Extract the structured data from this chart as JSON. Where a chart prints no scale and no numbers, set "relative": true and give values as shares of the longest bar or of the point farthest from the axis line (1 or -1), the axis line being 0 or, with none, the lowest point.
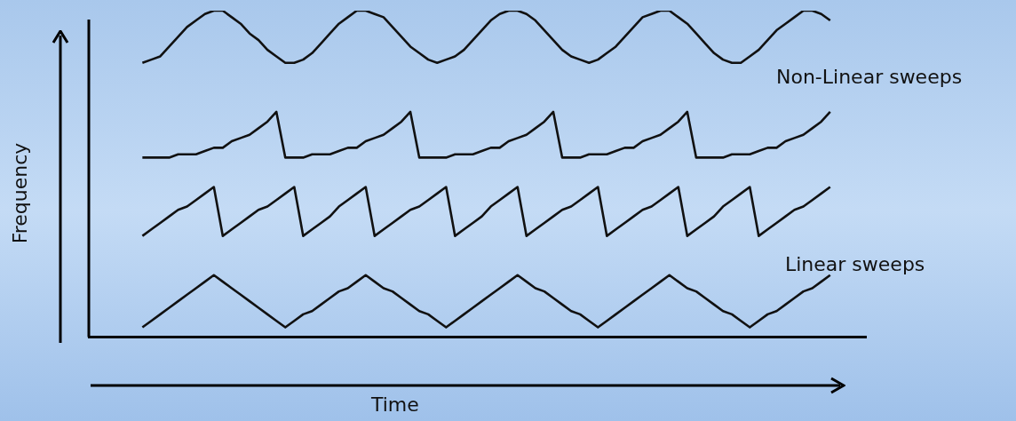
{
  "chart_data": {
    "type": "line",
    "relative": true,
    "xlabel": "Time",
    "ylabel": "Frequency",
    "legend": false,
    "grid": false,
    "marker": "none",
    "line_style": "solid",
    "annotations": [
      "Non-Linear sweeps",
      "Linear sweeps"
    ],
    "categories": [
      null,
      null,
      null,
      null,
      null,
      null,
      null,
      null,
      null,
      null,
      null,
      null,
      null,
      null,
      null,
      null,
      null,
      null,
      null,
      null,
      null,
      null,
      null,
      null,
      null,
      null,
      null,
      null,
      null,
      null,
      null,
      null,
      null,
      null,
      null,
      null,
      null,
      null,
      null,
      null,
      null,
      null,
      null,
      null,
      null,
      null,
      null,
      null,
      null,
      null,
      null,
      null,
      null,
      null,
      null,
      null,
      null,
      null,
      null,
      null,
      null,
      null,
      null,
      null,
      null,
      null,
      null,
      null,
      null,
      null,
      null,
      null,
      null,
      null,
      null,
      null,
      null,
      null,
      null,
      null,
      null,
      null,
      null,
      null,
      null,
      null,
      null,
      null
    ],
    "series": [
      {
        "color": "#111111",
        "values": [
          null,
          null,
          null,
          null,
          null,
          null,
          0.84,
          0.85,
          0.86,
          0.89,
          0.92,
          0.95,
          0.97,
          0.99,
          1,
          1,
          0.98,
          0.96,
          0.93,
          0.91,
          0.88,
          0.86,
          0.84,
          0.84,
          0.85,
          0.87,
          0.9,
          0.93,
          0.96,
          0.98,
          1,
          1,
          0.99,
          0.98,
          0.95,
          0.92,
          0.89,
          0.87,
          0.85,
          0.84,
          0.85,
          0.86,
          0.88,
          0.91,
          0.94,
          0.97,
          0.99,
          1,
          1,
          0.99,
          0.97,
          0.94,
          0.91,
          0.88,
          0.86,
          0.85,
          0.84,
          0.85,
          0.87,
          0.89,
          0.92,
          0.95,
          0.98,
          0.99,
          1,
          1,
          0.98,
          0.96,
          0.93,
          0.9,
          0.87,
          0.85,
          0.84,
          0.84,
          0.86,
          0.88,
          0.91,
          0.94,
          0.96,
          0.98,
          1,
          1,
          0.99,
          0.97,
          null,
          null,
          null,
          null
        ]
      },
      {
        "color": "#111111",
        "values": [
          null,
          null,
          null,
          null,
          null,
          null,
          0.55,
          0.55,
          0.55,
          0.55,
          0.56,
          0.56,
          0.56,
          0.57,
          0.58,
          0.58,
          0.6,
          0.61,
          0.62,
          0.64,
          0.66,
          0.69,
          0.55,
          0.55,
          0.55,
          0.56,
          0.56,
          0.56,
          0.57,
          0.58,
          0.58,
          0.6,
          0.61,
          0.62,
          0.64,
          0.66,
          0.69,
          0.55,
          0.55,
          0.55,
          0.55,
          0.56,
          0.56,
          0.56,
          0.57,
          0.58,
          0.58,
          0.6,
          0.61,
          0.62,
          0.64,
          0.66,
          0.69,
          0.55,
          0.55,
          0.55,
          0.56,
          0.56,
          0.56,
          0.57,
          0.58,
          0.58,
          0.6,
          0.61,
          0.62,
          0.64,
          0.66,
          0.69,
          0.55,
          0.55,
          0.55,
          0.55,
          0.56,
          0.56,
          0.56,
          0.57,
          0.58,
          0.58,
          0.6,
          0.61,
          0.62,
          0.64,
          0.66,
          0.69,
          null,
          null,
          null,
          null
        ]
      },
      {
        "color": "#111111",
        "values": [
          null,
          null,
          null,
          null,
          null,
          null,
          0.31,
          0.33,
          0.35,
          0.37,
          0.39,
          0.4,
          0.42,
          0.44,
          0.46,
          0.31,
          0.33,
          0.35,
          0.37,
          0.39,
          0.4,
          0.42,
          0.44,
          0.46,
          0.31,
          0.33,
          0.35,
          0.37,
          0.4,
          0.42,
          0.44,
          0.46,
          0.31,
          0.33,
          0.35,
          0.37,
          0.39,
          0.4,
          0.42,
          0.44,
          0.46,
          0.31,
          0.33,
          0.35,
          0.37,
          0.4,
          0.42,
          0.44,
          0.46,
          0.31,
          0.33,
          0.35,
          0.37,
          0.39,
          0.4,
          0.42,
          0.44,
          0.46,
          0.31,
          0.33,
          0.35,
          0.37,
          0.39,
          0.4,
          0.42,
          0.44,
          0.46,
          0.31,
          0.33,
          0.35,
          0.37,
          0.4,
          0.42,
          0.44,
          0.46,
          0.31,
          0.33,
          0.35,
          0.37,
          0.39,
          0.4,
          0.42,
          0.44,
          0.46,
          null,
          null,
          null,
          null
        ]
      },
      {
        "color": "#111111",
        "values": [
          null,
          null,
          null,
          null,
          null,
          null,
          0.03,
          0.05,
          0.07,
          0.09,
          0.11,
          0.13,
          0.15,
          0.17,
          0.19,
          0.17,
          0.15,
          0.13,
          0.11,
          0.09,
          0.07,
          0.05,
          0.03,
          0.05,
          0.07,
          0.08,
          0.1,
          0.12,
          0.14,
          0.15,
          0.17,
          0.19,
          0.17,
          0.15,
          0.14,
          0.12,
          0.1,
          0.08,
          0.07,
          0.05,
          0.03,
          0.05,
          0.07,
          0.09,
          0.11,
          0.13,
          0.15,
          0.17,
          0.19,
          0.17,
          0.15,
          0.14,
          0.12,
          0.1,
          0.08,
          0.07,
          0.05,
          0.03,
          0.05,
          0.07,
          0.09,
          0.11,
          0.13,
          0.15,
          0.17,
          0.19,
          0.17,
          0.15,
          0.14,
          0.12,
          0.1,
          0.08,
          0.07,
          0.05,
          0.03,
          0.05,
          0.07,
          0.08,
          0.1,
          0.12,
          0.14,
          0.15,
          0.17,
          0.19,
          null,
          null,
          null,
          null
        ]
      }
    ]
  }
}
